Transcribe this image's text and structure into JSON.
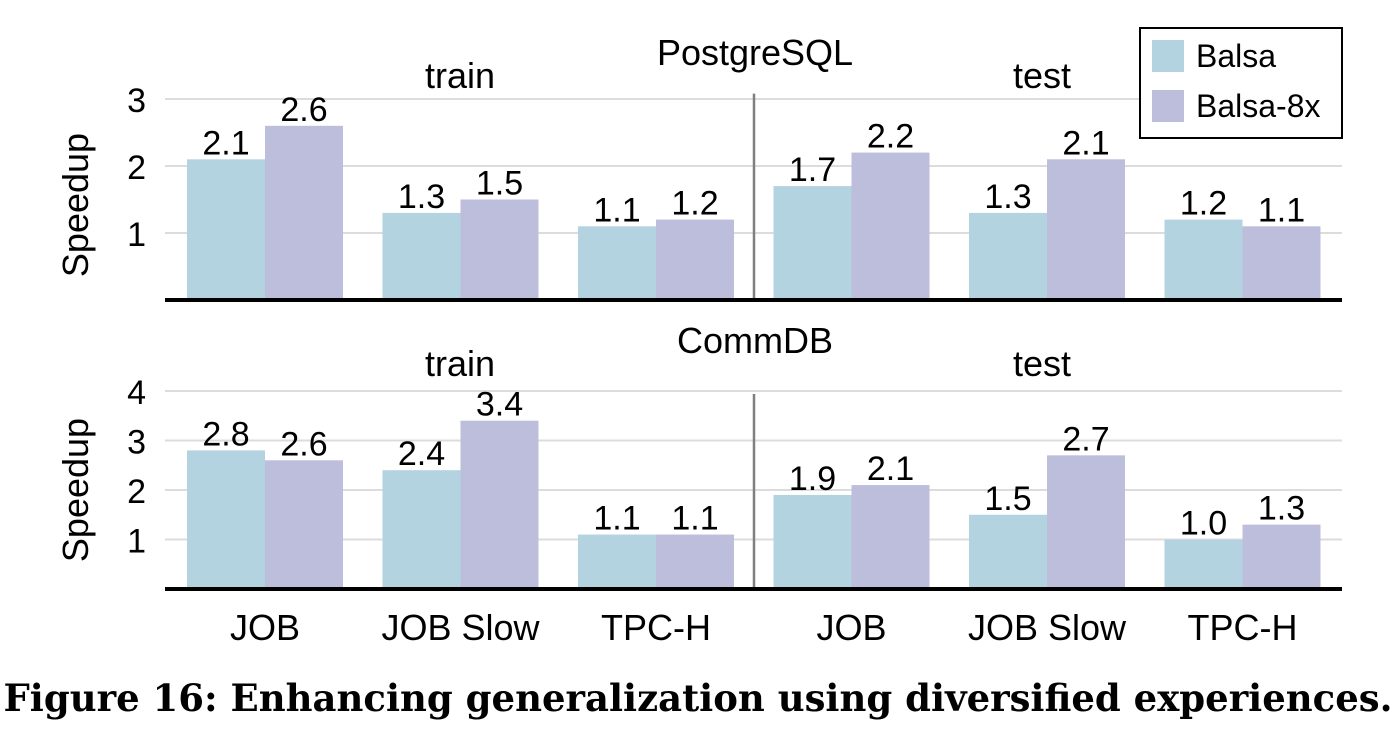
{
  "caption": "Figure 16: Enhancing generalization using diversified experiences.",
  "colors": {
    "Balsa": "#b3d3e0",
    "Balsa-8x": "#bdbddc"
  },
  "chart_data": {
    "type": "bar",
    "legend": {
      "entries": [
        "Balsa",
        "Balsa-8x"
      ],
      "placement": "top-right"
    },
    "groups": [
      "train",
      "test"
    ],
    "categories": [
      "JOB",
      "JOB Slow",
      "TPC-H",
      "JOB",
      "JOB Slow",
      "TPC-H"
    ],
    "grid": true,
    "panels": [
      {
        "title": "PostgreSQL",
        "ylabel": "Speedup",
        "yticks": [
          1,
          2,
          3
        ],
        "ylim": [
          0,
          3.2
        ],
        "series": [
          {
            "name": "Balsa",
            "values": [
              2.1,
              1.3,
              1.1,
              1.7,
              1.3,
              1.2
            ]
          },
          {
            "name": "Balsa-8x",
            "values": [
              2.6,
              1.5,
              1.2,
              2.2,
              2.1,
              1.1
            ]
          }
        ]
      },
      {
        "title": "CommDB",
        "ylabel": "Speedup",
        "yticks": [
          1,
          2,
          3,
          4
        ],
        "ylim": [
          0,
          4.1
        ],
        "series": [
          {
            "name": "Balsa",
            "values": [
              2.8,
              2.4,
              1.1,
              1.9,
              1.5,
              1.0
            ]
          },
          {
            "name": "Balsa-8x",
            "values": [
              2.6,
              3.4,
              1.1,
              2.1,
              2.7,
              1.3
            ]
          }
        ]
      }
    ]
  }
}
